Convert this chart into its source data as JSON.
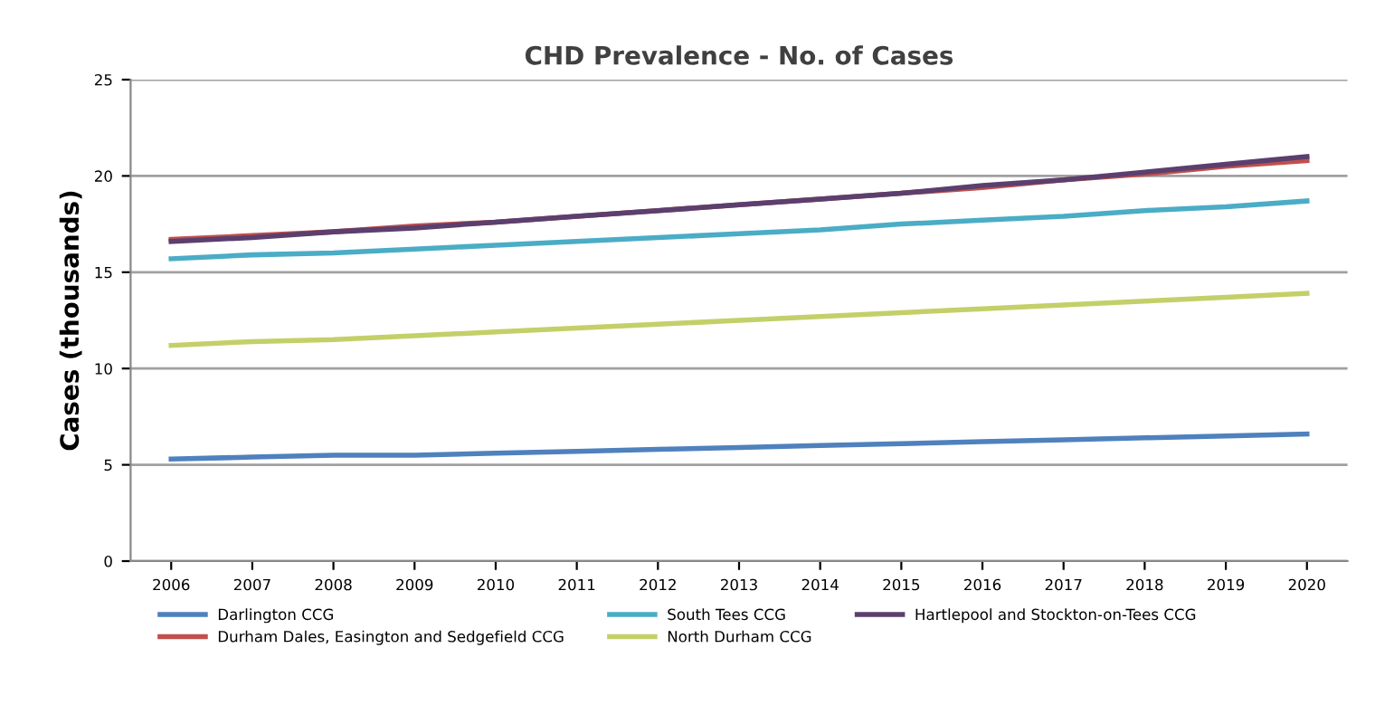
{
  "chart_data": {
    "type": "line",
    "title": "CHD Prevalence - No. of Cases",
    "ylabel": "Cases (thousands)",
    "categories": [
      "2006",
      "2007",
      "2008",
      "2009",
      "2010",
      "2011",
      "2012",
      "2013",
      "2014",
      "2015",
      "2016",
      "2017",
      "2018",
      "2019",
      "2020"
    ],
    "series": [
      {
        "name": "Darlington CCG",
        "color": "#4f81bd",
        "values": [
          5.3,
          5.4,
          5.5,
          5.5,
          5.6,
          5.7,
          5.8,
          5.9,
          6.0,
          6.1,
          6.2,
          6.3,
          6.4,
          6.5,
          6.6
        ]
      },
      {
        "name": "Durham Dales, Easington and Sedgefield CCG",
        "color": "#c0504d",
        "values": [
          16.7,
          16.9,
          17.1,
          17.4,
          17.6,
          17.9,
          18.2,
          18.5,
          18.8,
          19.1,
          19.4,
          19.8,
          20.1,
          20.5,
          20.8
        ]
      },
      {
        "name": "South Tees CCG",
        "color": "#4bacc6",
        "values": [
          15.7,
          15.9,
          16.0,
          16.2,
          16.4,
          16.6,
          16.8,
          17.0,
          17.2,
          17.5,
          17.7,
          17.9,
          18.2,
          18.4,
          18.7
        ]
      },
      {
        "name": "North Durham CCG",
        "color": "#c3d069",
        "values": [
          11.2,
          11.4,
          11.5,
          11.7,
          11.9,
          12.1,
          12.3,
          12.5,
          12.7,
          12.9,
          13.1,
          13.3,
          13.5,
          13.7,
          13.9
        ]
      },
      {
        "name": "Hartlepool and Stockton-on-Tees CCG",
        "color": "#5b3f6e",
        "values": [
          16.6,
          16.8,
          17.1,
          17.3,
          17.6,
          17.9,
          18.2,
          18.5,
          18.8,
          19.1,
          19.5,
          19.8,
          20.2,
          20.6,
          21.0
        ]
      }
    ],
    "ylim": [
      0,
      25
    ],
    "yticks": [
      0,
      5,
      10,
      15,
      20,
      25
    ],
    "grid": "y",
    "legend": "bottom",
    "marker": "none",
    "line_style": "solid"
  }
}
